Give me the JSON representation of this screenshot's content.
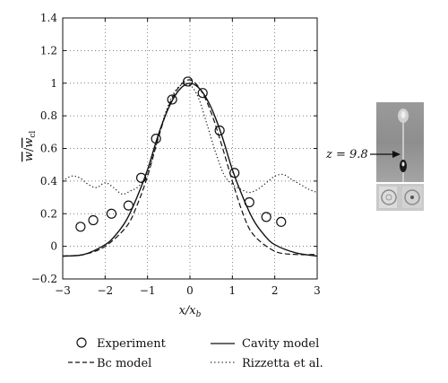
{
  "chart_data": {
    "type": "line",
    "xlabel": "x/x_b",
    "ylabel": "w̄/w̄_cl",
    "xlim": [
      -3,
      3
    ],
    "ylim": [
      -0.2,
      1.4
    ],
    "xticks": [
      -3,
      -2,
      -1,
      0,
      1,
      2,
      3
    ],
    "yticks": [
      -0.2,
      0,
      0.2,
      0.4,
      0.6,
      0.8,
      1,
      1.2,
      1.4
    ],
    "grid": true,
    "legend_position": "bottom",
    "series": [
      {
        "name": "Experiment",
        "style": "circles",
        "x": [
          -2.58,
          -2.28,
          -1.85,
          -1.45,
          -1.15,
          -0.8,
          -0.42,
          -0.05,
          0.3,
          0.7,
          1.05,
          1.4,
          1.8,
          2.15
        ],
        "y": [
          0.12,
          0.16,
          0.2,
          0.25,
          0.42,
          0.66,
          0.9,
          1.01,
          0.94,
          0.71,
          0.45,
          0.27,
          0.18,
          0.15
        ]
      },
      {
        "name": "Cavity model",
        "style": "solid",
        "x": [
          -3.0,
          -2.5,
          -2.0,
          -1.75,
          -1.5,
          -1.25,
          -1.0,
          -0.75,
          -0.5,
          -0.25,
          0.0,
          0.25,
          0.5,
          0.75,
          1.0,
          1.25,
          1.5,
          1.75,
          2.0,
          2.5,
          3.0
        ],
        "y": [
          -0.06,
          -0.05,
          0.01,
          0.07,
          0.16,
          0.3,
          0.47,
          0.68,
          0.85,
          0.96,
          1.0,
          0.96,
          0.85,
          0.68,
          0.47,
          0.3,
          0.16,
          0.07,
          0.01,
          -0.04,
          -0.06
        ]
      },
      {
        "name": "Bc model",
        "style": "dashed",
        "x": [
          -3.0,
          -2.5,
          -2.0,
          -1.5,
          -1.25,
          -1.0,
          -0.75,
          -0.5,
          -0.25,
          0.0,
          0.25,
          0.5,
          0.75,
          1.0,
          1.25,
          1.5,
          2.0,
          2.5,
          3.0
        ],
        "y": [
          -0.06,
          -0.05,
          0.0,
          0.12,
          0.25,
          0.43,
          0.66,
          0.86,
          0.98,
          1.02,
          0.96,
          0.82,
          0.62,
          0.4,
          0.2,
          0.07,
          -0.03,
          -0.05,
          -0.05
        ]
      },
      {
        "name": "Rizzetta et al.",
        "style": "dotted",
        "x": [
          -3.0,
          -2.8,
          -2.6,
          -2.4,
          -2.2,
          -2.0,
          -1.8,
          -1.6,
          -1.4,
          -1.2,
          -1.0,
          -0.8,
          -0.6,
          -0.4,
          -0.2,
          0.0,
          0.2,
          0.4,
          0.6,
          0.8,
          1.0,
          1.2,
          1.4,
          1.6,
          1.8,
          2.0,
          2.2,
          2.4,
          2.6,
          2.8,
          3.0
        ],
        "y": [
          0.4,
          0.43,
          0.42,
          0.38,
          0.36,
          0.39,
          0.36,
          0.32,
          0.34,
          0.37,
          0.45,
          0.62,
          0.8,
          0.93,
          0.99,
          0.99,
          0.91,
          0.75,
          0.58,
          0.44,
          0.38,
          0.35,
          0.33,
          0.35,
          0.39,
          0.43,
          0.44,
          0.41,
          0.38,
          0.35,
          0.33
        ]
      }
    ]
  },
  "legend": {
    "experiment": "Experiment",
    "cavity": "Cavity model",
    "bc": "Bc model",
    "rizzetta": "Rizzetta et al."
  },
  "inset": {
    "label": "z = 9.8"
  }
}
